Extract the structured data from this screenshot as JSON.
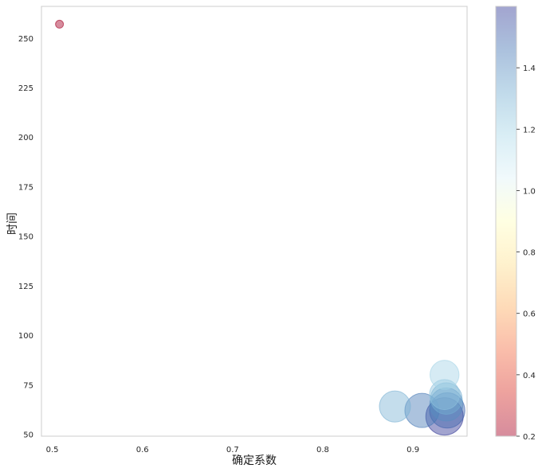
{
  "chart_data": {
    "type": "scatter",
    "xlabel": "确定系数",
    "ylabel": "时间",
    "xlim": [
      0.488,
      0.96
    ],
    "ylim": [
      49,
      266
    ],
    "x_ticks": [
      "0.5",
      "0.6",
      "0.7",
      "0.8",
      "0.9"
    ],
    "y_ticks": [
      "50",
      "75",
      "100",
      "125",
      "150",
      "175",
      "200",
      "225",
      "250"
    ],
    "grid": false,
    "colormap": "RdYlBu",
    "colorbar": {
      "range": [
        0.2,
        1.6
      ],
      "ticks": [
        "0.2",
        "0.4",
        "0.6",
        "0.8",
        "1.0",
        "1.2",
        "1.4"
      ],
      "colors": [
        "#a50026",
        "#d73027",
        "#f46d43",
        "#fdae61",
        "#fee090",
        "#ffffbf",
        "#e0f3f8",
        "#abd9e9",
        "#74add1",
        "#4575b4",
        "#313695"
      ]
    },
    "points": [
      {
        "x": 0.508,
        "y": 257,
        "c": 0.2,
        "s": 0.2
      },
      {
        "x": 0.88,
        "y": 64,
        "c": 1.3,
        "s": 1.3
      },
      {
        "x": 0.91,
        "y": 62,
        "c": 1.45,
        "s": 1.45
      },
      {
        "x": 0.935,
        "y": 80,
        "c": 1.2,
        "s": 1.2
      },
      {
        "x": 0.935,
        "y": 70,
        "c": 1.25,
        "s": 1.25
      },
      {
        "x": 0.937,
        "y": 68,
        "c": 1.32,
        "s": 1.32
      },
      {
        "x": 0.937,
        "y": 65,
        "c": 1.4,
        "s": 1.4
      },
      {
        "x": 0.938,
        "y": 62,
        "c": 1.5,
        "s": 1.5
      },
      {
        "x": 0.935,
        "y": 59,
        "c": 1.6,
        "s": 1.6
      }
    ]
  }
}
